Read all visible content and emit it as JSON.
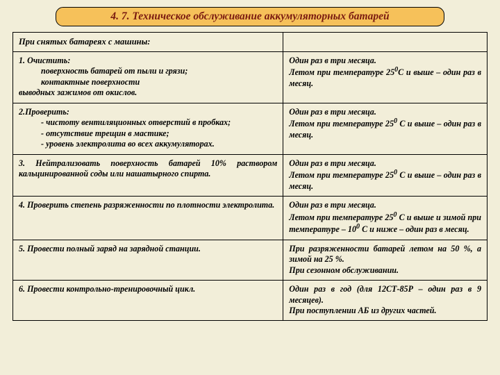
{
  "page_bg": "#f2eed9",
  "badge_bg": "#f6c15a",
  "title": "4. 7. Техническое обслуживание аккумуляторных батарей",
  "header_left": "При снятых батареях с машины:",
  "r1": {
    "l1": "1. Очистить:",
    "b1": "поверхность батарей от пыли и грязи;",
    "b2": "контактные поверхности",
    "l2": "выводных зажимов от окислов.",
    "r1": "Один раз в три месяца.",
    "r2a": "Летом при температуре 25",
    "r2deg": "0",
    "r2b": "С и выше – один раз в месяц."
  },
  "r2": {
    "h": "2.Проверить:",
    "b1": "чистоту вентиляционных отверстий в пробках;",
    "b2": "отсутствие трещин в мастике;",
    "b3": "уровень электролита во всех аккумуляторах.",
    "r1": "Один раз в три месяца.",
    "r2a": "Летом при температуре 25",
    "r2deg": "0",
    "r2b": " С и выше – один раз в месяц."
  },
  "r3": {
    "l": "3. Нейтрализовать поверхность батарей 10% раствором кальцинированной соды или нашатырного спирта.",
    "r1": "Один раз в три месяца.",
    "r2a": "Летом при температуре 25",
    "r2deg": "0",
    "r2b": " С и выше – один раз в месяц."
  },
  "r4": {
    "l": "4. Проверить степень разряженности по плотности электролита.",
    "r1": "Один раз в три месяца.",
    "r2a": "Летом при температуре 25",
    "r2d1": "0",
    "r2b": " С и выше и зимой при температуре – 10",
    "r2d2": "0",
    "r2c": " С и ниже – один раз в месяц."
  },
  "r5": {
    "l": "5. Провести полный заряд на зарядной станции.",
    "r1": "При разряженности батарей летом на 50 %, а зимой на 25 %.",
    "r2": "При сезонном обслуживании."
  },
  "r6": {
    "l": "6. Провести контрольно-тренировочный цикл.",
    "r1": "Один раз в год (для 12СТ-85Р – один раз в 9 месяцев).",
    "r2": "При поступлении АБ из других частей."
  }
}
